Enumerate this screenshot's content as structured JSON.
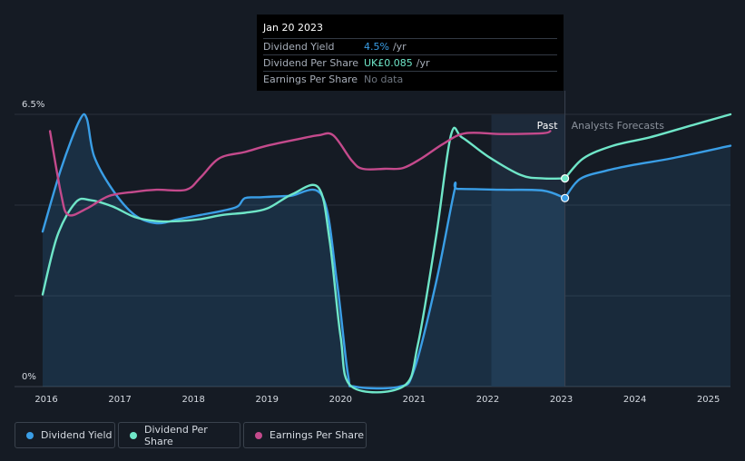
{
  "tooltip": {
    "date": "Jan 20 2023",
    "rows": [
      {
        "label": "Dividend Yield",
        "value": "4.5%",
        "unit": "/yr",
        "color": "#3a9ee6"
      },
      {
        "label": "Dividend Per Share",
        "value": "UK£0.085",
        "unit": "/yr",
        "color": "#6fe6c8"
      },
      {
        "label": "Earnings Per Share",
        "value": "No data",
        "unit": "",
        "color": "#6f7680"
      }
    ]
  },
  "labels": {
    "past": "Past",
    "forecast": "Analysts Forecasts"
  },
  "legend": [
    {
      "label": "Dividend Yield",
      "color": "#3a9ee6"
    },
    {
      "label": "Dividend Per Share",
      "color": "#6fe6c8"
    },
    {
      "label": "Earnings Per Share",
      "color": "#c44a8c"
    }
  ],
  "chart_data": {
    "type": "line",
    "ylabel": "",
    "ylim": [
      0,
      6.5
    ],
    "ytick_labels": [
      "6.5%",
      "0%"
    ],
    "xlim": [
      2015.95,
      2025.3
    ],
    "xtick_labels": [
      "2016",
      "2017",
      "2018",
      "2019",
      "2020",
      "2021",
      "2022",
      "2023",
      "2024",
      "2025"
    ],
    "past_end": 2023.05,
    "past_band_start": 2022.05,
    "grid": true,
    "series": [
      {
        "name": "Dividend Yield",
        "color": "#3a9ee6",
        "area": true,
        "points": [
          [
            2015.95,
            3.7
          ],
          [
            2016.2,
            5.2
          ],
          [
            2016.45,
            6.35
          ],
          [
            2016.55,
            6.4
          ],
          [
            2016.65,
            5.5
          ],
          [
            2016.9,
            4.7
          ],
          [
            2017.2,
            4.1
          ],
          [
            2017.5,
            3.9
          ],
          [
            2017.8,
            4.0
          ],
          [
            2018.1,
            4.1
          ],
          [
            2018.4,
            4.2
          ],
          [
            2018.6,
            4.3
          ],
          [
            2018.7,
            4.5
          ],
          [
            2018.9,
            4.52
          ],
          [
            2019.3,
            4.55
          ],
          [
            2019.75,
            4.55
          ],
          [
            2019.95,
            2.5
          ],
          [
            2020.1,
            0.3
          ],
          [
            2020.2,
            0.0
          ],
          [
            2020.8,
            0.0
          ],
          [
            2021.0,
            0.4
          ],
          [
            2021.3,
            2.5
          ],
          [
            2021.55,
            4.7
          ],
          [
            2021.6,
            4.72
          ],
          [
            2022.2,
            4.7
          ],
          [
            2022.75,
            4.68
          ],
          [
            2023.05,
            4.5
          ]
        ]
      },
      {
        "name": "Dividend Per Share",
        "color": "#6fe6c8",
        "area": false,
        "points": [
          [
            2015.95,
            2.2
          ],
          [
            2016.15,
            3.6
          ],
          [
            2016.4,
            4.4
          ],
          [
            2016.6,
            4.45
          ],
          [
            2016.9,
            4.3
          ],
          [
            2017.2,
            4.05
          ],
          [
            2017.5,
            3.95
          ],
          [
            2017.8,
            3.95
          ],
          [
            2018.1,
            4.0
          ],
          [
            2018.4,
            4.1
          ],
          [
            2018.7,
            4.15
          ],
          [
            2019.0,
            4.25
          ],
          [
            2019.35,
            4.6
          ],
          [
            2019.7,
            4.75
          ],
          [
            2019.85,
            3.5
          ],
          [
            2020.0,
            1.2
          ],
          [
            2020.15,
            0.0
          ],
          [
            2020.85,
            0.0
          ],
          [
            2021.05,
            1.0
          ],
          [
            2021.3,
            3.6
          ],
          [
            2021.5,
            6.0
          ],
          [
            2021.65,
            5.95
          ],
          [
            2022.0,
            5.5
          ],
          [
            2022.45,
            5.05
          ],
          [
            2022.75,
            4.97
          ],
          [
            2023.05,
            4.97
          ]
        ]
      },
      {
        "name": "Earnings Per Share",
        "color": "#c44a8c",
        "area": false,
        "points": [
          [
            2016.05,
            6.1
          ],
          [
            2016.2,
            4.6
          ],
          [
            2016.3,
            4.1
          ],
          [
            2016.55,
            4.25
          ],
          [
            2016.85,
            4.55
          ],
          [
            2017.2,
            4.65
          ],
          [
            2017.5,
            4.7
          ],
          [
            2017.9,
            4.7
          ],
          [
            2018.1,
            5.0
          ],
          [
            2018.35,
            5.45
          ],
          [
            2018.7,
            5.6
          ],
          [
            2019.0,
            5.75
          ],
          [
            2019.4,
            5.9
          ],
          [
            2019.7,
            6.0
          ],
          [
            2019.9,
            6.0
          ],
          [
            2020.15,
            5.4
          ],
          [
            2020.3,
            5.2
          ],
          [
            2020.6,
            5.2
          ],
          [
            2020.85,
            5.22
          ],
          [
            2021.1,
            5.45
          ],
          [
            2021.4,
            5.8
          ],
          [
            2021.7,
            6.05
          ],
          [
            2022.2,
            6.03
          ],
          [
            2022.75,
            6.05
          ],
          [
            2022.85,
            6.1
          ]
        ]
      },
      {
        "name": "Dividend Yield forecast",
        "color": "#3a9ee6",
        "area": true,
        "forecast": true,
        "points": [
          [
            2023.05,
            4.5
          ],
          [
            2023.25,
            4.95
          ],
          [
            2023.6,
            5.15
          ],
          [
            2024.0,
            5.3
          ],
          [
            2024.5,
            5.45
          ],
          [
            2025.3,
            5.75
          ]
        ]
      },
      {
        "name": "Dividend Per Share forecast",
        "color": "#6fe6c8",
        "area": false,
        "forecast": true,
        "points": [
          [
            2023.05,
            4.97
          ],
          [
            2023.3,
            5.45
          ],
          [
            2023.7,
            5.75
          ],
          [
            2024.2,
            5.95
          ],
          [
            2024.7,
            6.2
          ],
          [
            2025.3,
            6.5
          ]
        ]
      }
    ],
    "markers": [
      {
        "x": 2023.05,
        "y": 4.5,
        "color": "#3a9ee6"
      },
      {
        "x": 2023.05,
        "y": 4.97,
        "color": "#6fe6c8"
      }
    ]
  }
}
